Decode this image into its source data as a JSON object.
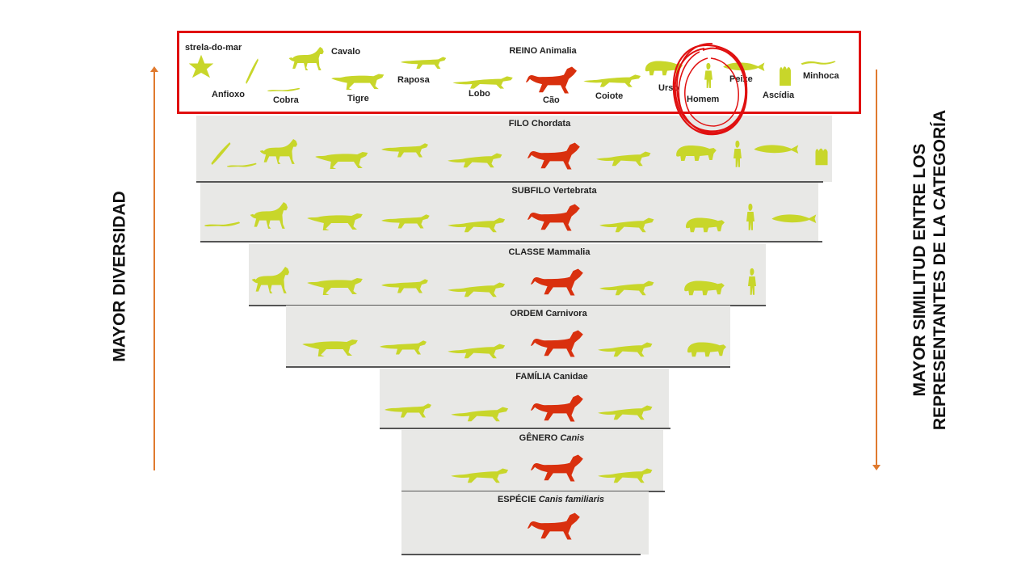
{
  "left_label": "MAYOR DIVERSIDAD",
  "right_label_line1": "MAYOR SIMILITUD ENTRE LOS",
  "right_label_line2": "REPRESENTANTES DE LA CATEGORÍA",
  "levels": [
    {
      "rank": "REINO",
      "taxon": "Animalia",
      "italic": false
    },
    {
      "rank": "FILO",
      "taxon": "Chordata",
      "italic": false
    },
    {
      "rank": "SUBFILO",
      "taxon": "Vertebrata",
      "italic": false
    },
    {
      "rank": "CLASSE",
      "taxon": "Mammalia",
      "italic": false
    },
    {
      "rank": "ORDEM",
      "taxon": "Carnivora",
      "italic": false
    },
    {
      "rank": "FAMÍLIA",
      "taxon": "Canidae",
      "italic": false
    },
    {
      "rank": "GÊNERO",
      "taxon": "Canis",
      "italic": true
    },
    {
      "rank": "ESPÉCIE",
      "taxon": "Canis familiaris",
      "italic": true
    }
  ],
  "kingdom_animals": [
    "strela-do-mar",
    "Anfioxo",
    "Cobra",
    "Cavalo",
    "Tigre",
    "Raposa",
    "Lobo",
    "Cão",
    "Coiote",
    "Urso",
    "Homem",
    "Peixe",
    "Ascídia",
    "Minhoca"
  ],
  "colors": {
    "accent_arrow": "#e07a2e",
    "highlight_red": "#e01010",
    "animal_green": "#c8d62a",
    "dog_red": "#d9300e",
    "panel_grey": "#e8e8e6"
  }
}
